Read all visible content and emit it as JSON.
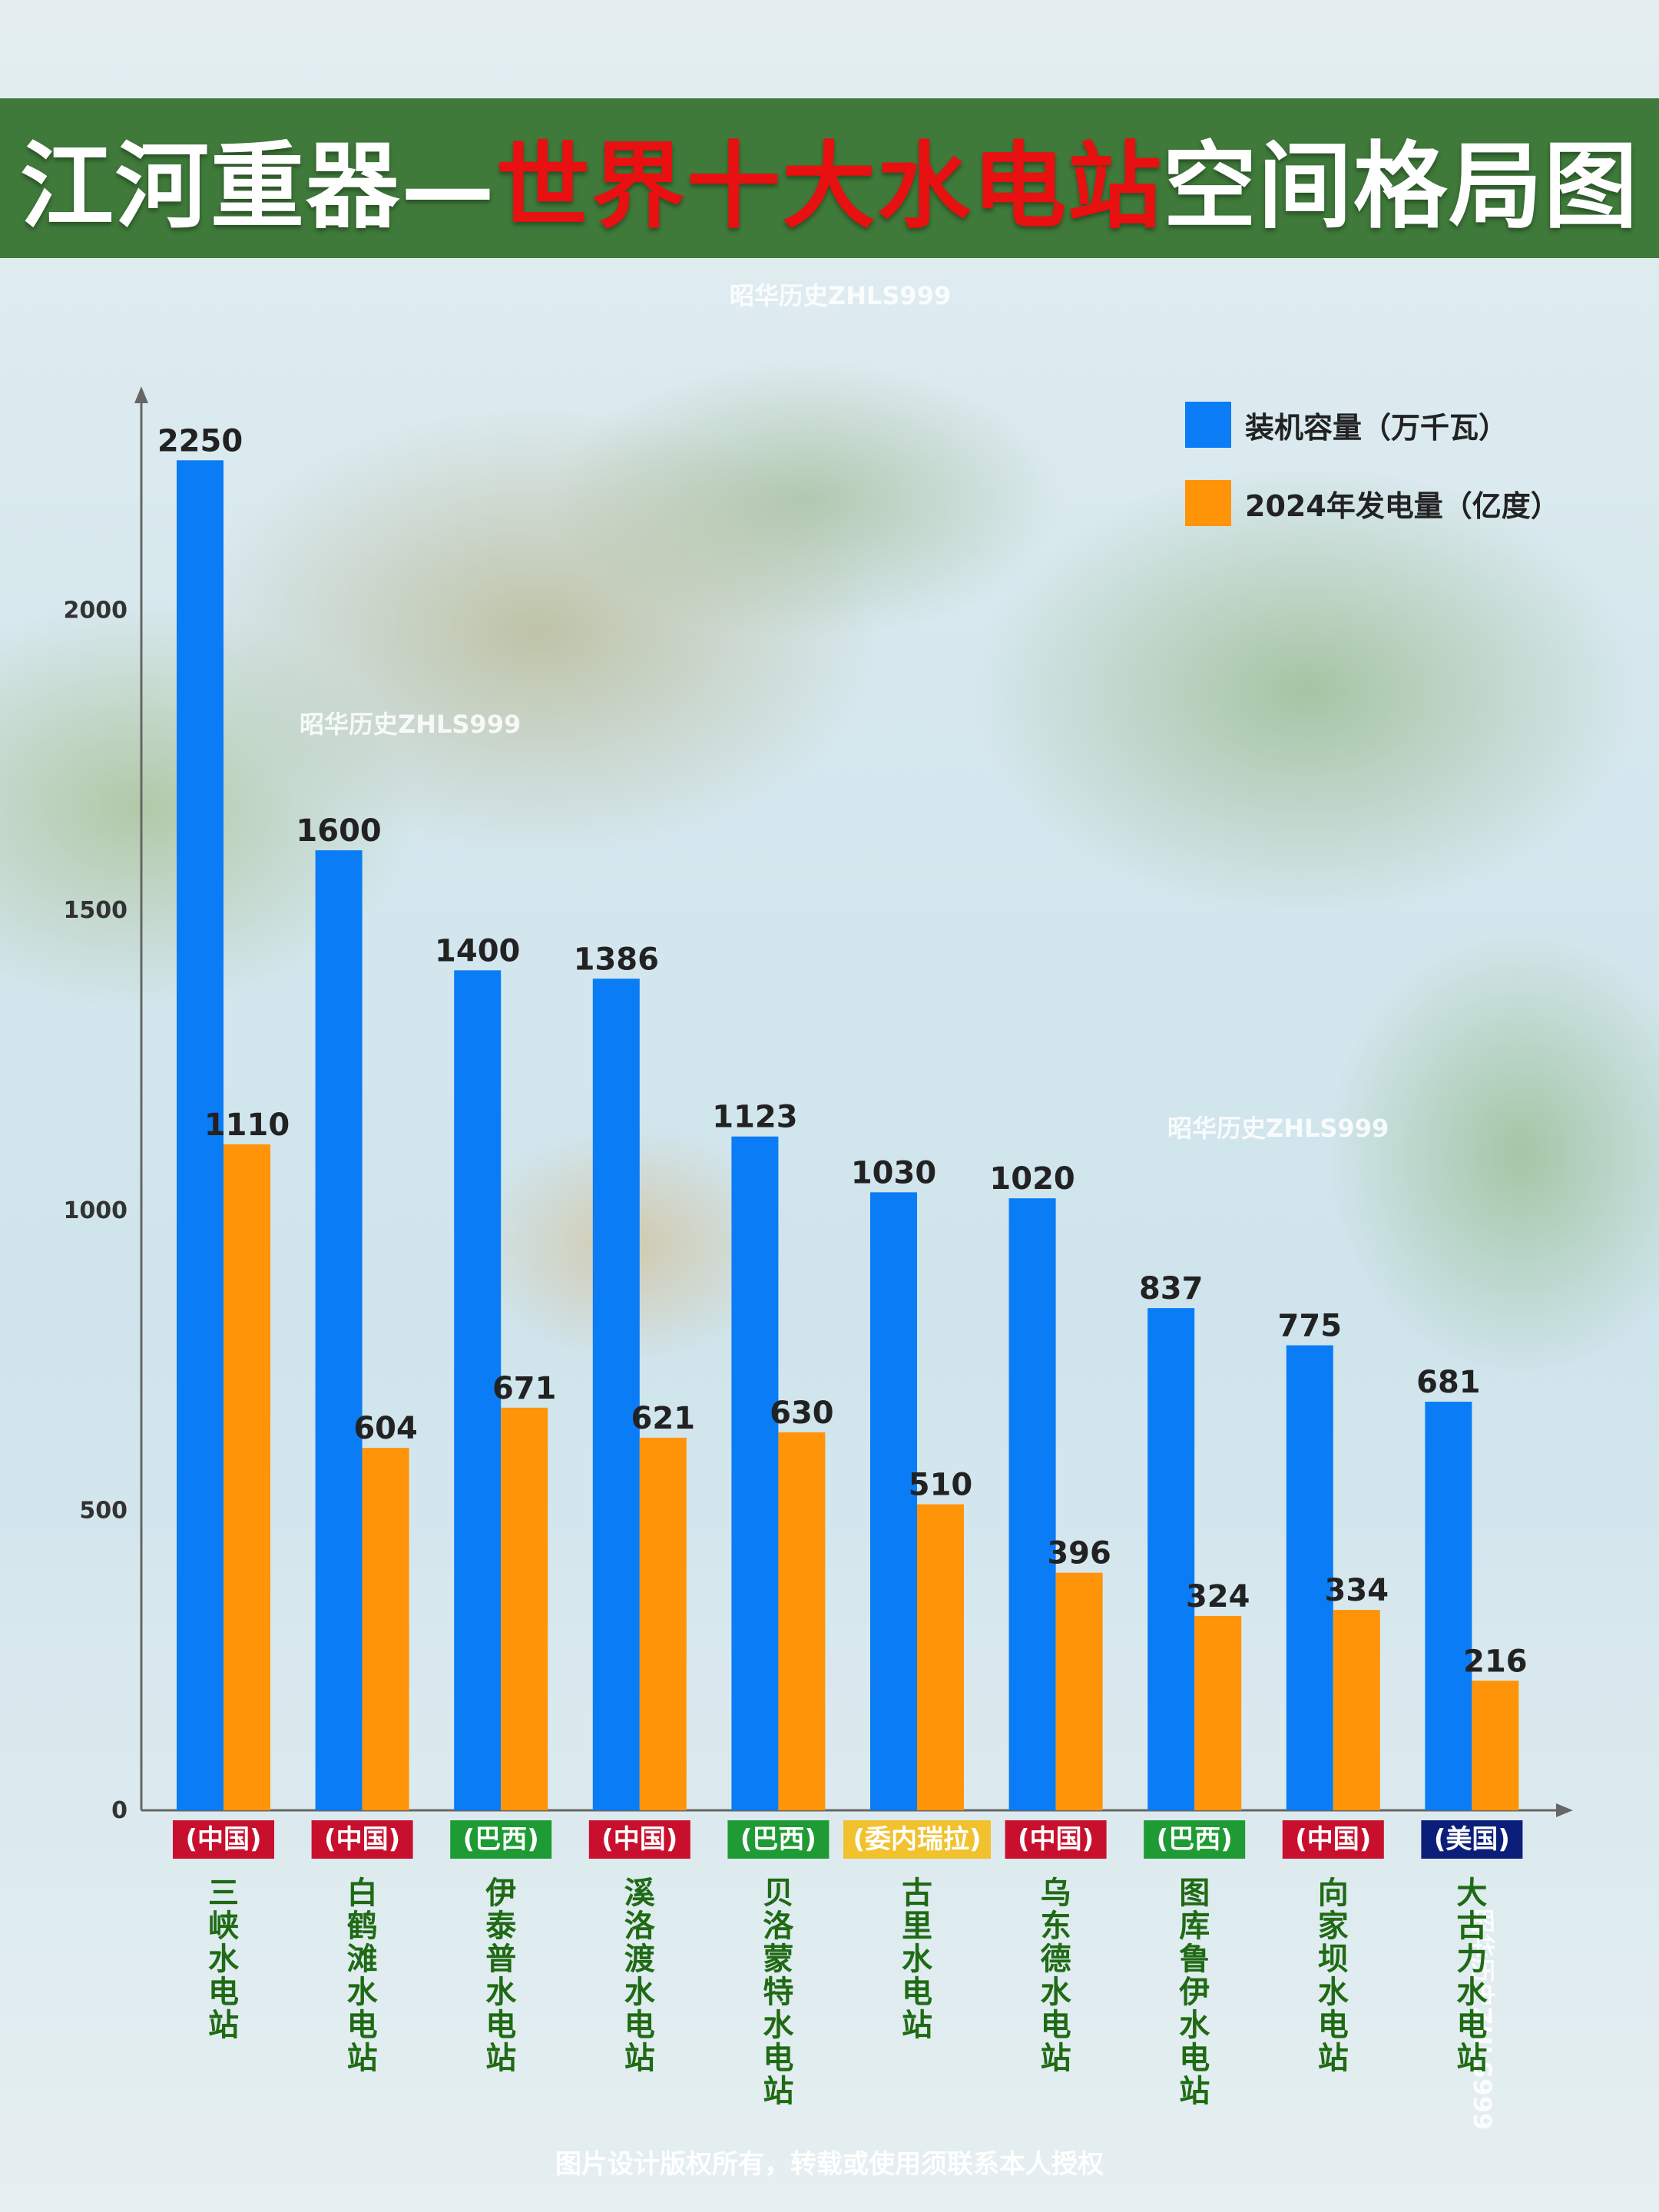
{
  "title": {
    "part1": "江河重器—",
    "part2": "世界十大水电站",
    "part3": "空间格局图"
  },
  "watermarks": [
    "昭华历史ZHLS999",
    "昭华历史ZHLS999",
    "昭华历史ZHLS999",
    "昭华历史ZHLS999"
  ],
  "footer": "图片设计版权所有，转载或使用须联系本人授权",
  "colors": {
    "title_bg": "#3f7a3a",
    "title_highlight": "#e81010",
    "capacity": "#0a7cf5",
    "generation": "#ff9408",
    "country_china": "#c8102e",
    "country_brazil": "#1e9b34",
    "country_venezuela": "#f2c12e",
    "country_usa": "#0b1f7a",
    "station_name": "#1f6a14"
  },
  "chart_data": {
    "type": "bar",
    "ylim": [
      0,
      2400
    ],
    "yticks": [
      0,
      500,
      1000,
      1500,
      2000
    ],
    "legend_position": "top-right",
    "series": [
      {
        "name": "装机容量（万千瓦）",
        "color": "#0a7cf5",
        "values": [
          2250,
          1600,
          1400,
          1386,
          1123,
          1030,
          1020,
          837,
          775,
          681
        ]
      },
      {
        "name": "2024年发电量（亿度）",
        "color": "#ff9408",
        "values": [
          1110,
          604,
          671,
          621,
          630,
          510,
          396,
          324,
          334,
          216
        ]
      }
    ],
    "categories": [
      "三峡水电站",
      "白鹤滩水电站",
      "伊泰普水电站",
      "溪洛渡水电站",
      "贝洛蒙特水电站",
      "古里水电站",
      "乌东德水电站",
      "图库鲁伊水电站",
      "向家坝水电站",
      "大古力水电站"
    ],
    "countries": [
      "(中国)",
      "(中国)",
      "(巴西)",
      "(中国)",
      "(巴西)",
      "(委内瑞拉)",
      "(中国)",
      "(巴西)",
      "(中国)",
      "(美国)"
    ],
    "country_colors": [
      "#c8102e",
      "#c8102e",
      "#1e9b34",
      "#c8102e",
      "#1e9b34",
      "#f2c12e",
      "#c8102e",
      "#1e9b34",
      "#c8102e",
      "#0b1f7a"
    ]
  }
}
